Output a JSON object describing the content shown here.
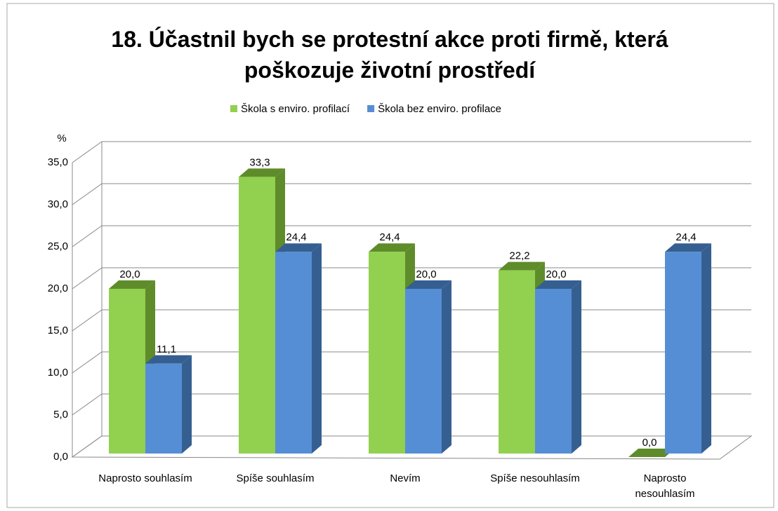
{
  "chart_data": {
    "type": "bar3d",
    "title": "18. Účastnil bych se protestní akce proti firmě, která poškozuje životní prostředí",
    "y_label": "%",
    "categories": [
      "Naprosto souhlasím",
      "Spíše souhlasím",
      "Nevím",
      "Spíše nesouhlasím",
      "Naprosto nesouhlasím"
    ],
    "series": [
      {
        "name": "Škola s enviro. profilací",
        "color": "#92d050",
        "side_color": "#5f8c2a",
        "values": [
          20.0,
          33.3,
          24.4,
          22.2,
          0.0
        ],
        "value_labels": [
          "20,0",
          "33,3",
          "24,4",
          "22,2",
          "0,0"
        ]
      },
      {
        "name": "Škola bez enviro. profilace",
        "color": "#558ed5",
        "side_color": "#365f91",
        "values": [
          11.1,
          24.4,
          20.0,
          20.0,
          24.4
        ],
        "value_labels": [
          "11,1",
          "24,4",
          "20,0",
          "20,0",
          "24,4"
        ]
      }
    ],
    "ylim": [
      0,
      35
    ],
    "yticks": [
      {
        "value": 0,
        "label": "0,0"
      },
      {
        "value": 5,
        "label": "5,0"
      },
      {
        "value": 10,
        "label": "10,0"
      },
      {
        "value": 15,
        "label": "15,0"
      },
      {
        "value": 20,
        "label": "20,0"
      },
      {
        "value": 25,
        "label": "25,0"
      },
      {
        "value": 30,
        "label": "30,0"
      },
      {
        "value": 35,
        "label": "35,0"
      }
    ],
    "grid": true,
    "legend": "top"
  }
}
